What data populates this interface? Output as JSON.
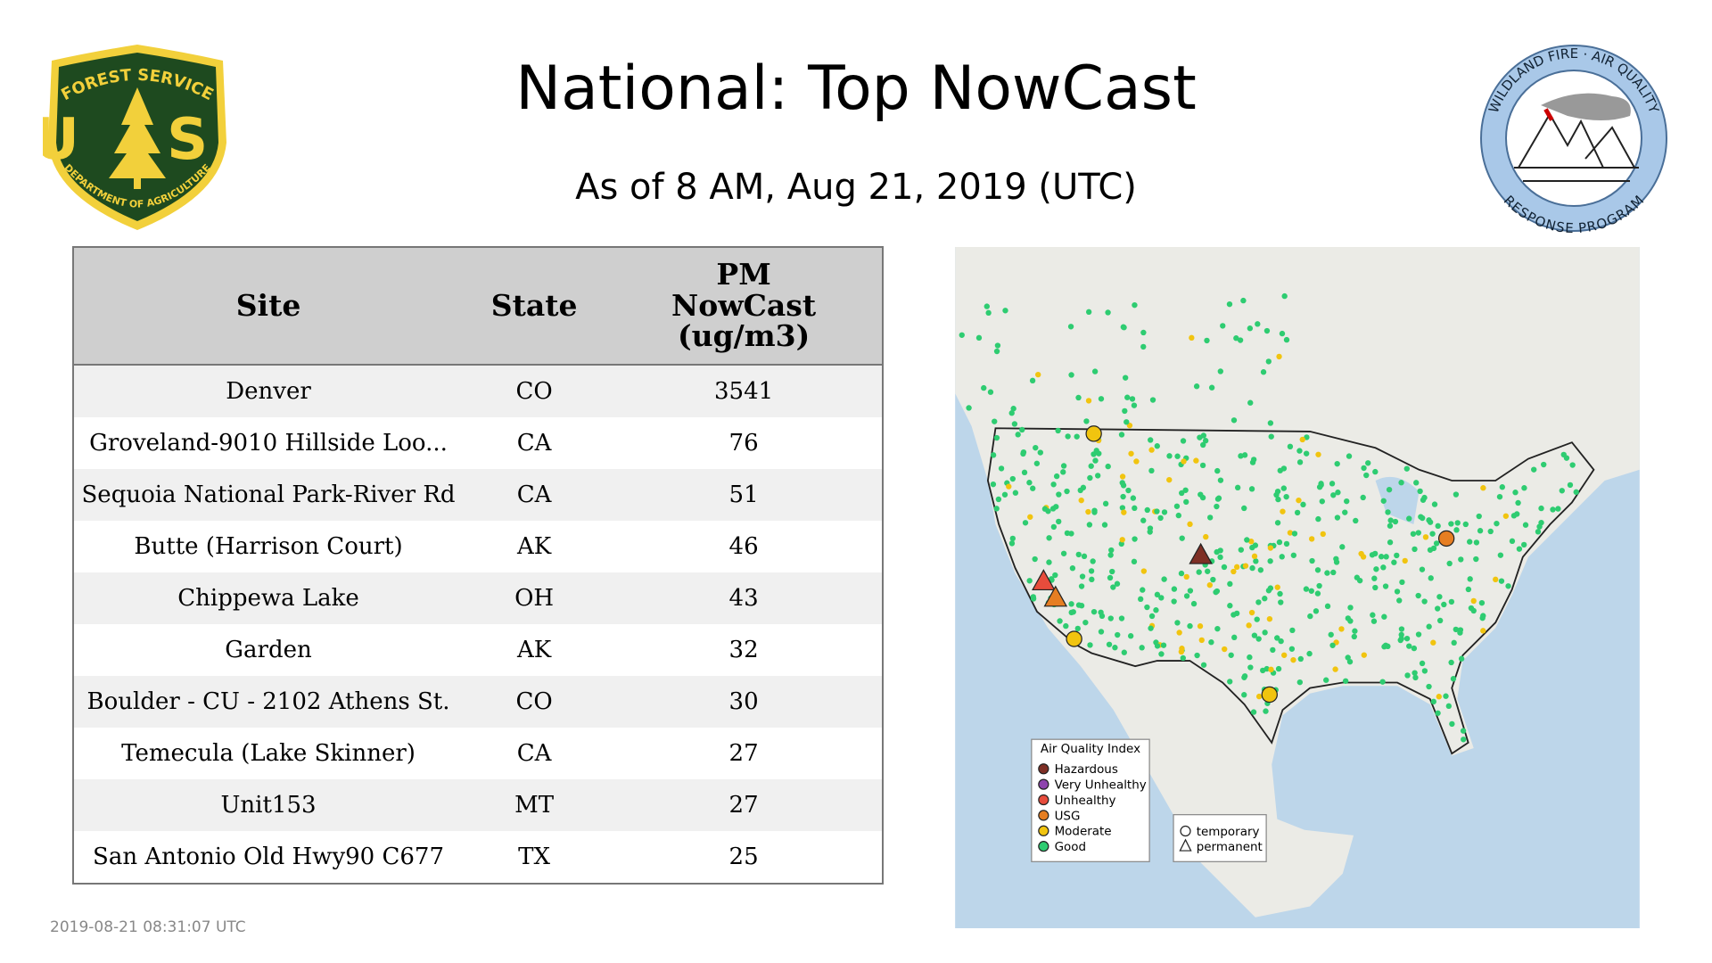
{
  "header": {
    "title": "National: Top NowCast",
    "subtitle": "As of  8 AM, Aug 21, 2019 (UTC)"
  },
  "logos": {
    "left": {
      "top": "FOREST SERVICE",
      "letters": "U S",
      "bottom": "DEPARTMENT OF AGRICULTURE"
    },
    "right": {
      "top": "WILDLAND FIRE · AIR QUALITY",
      "bottom": "RESPONSE PROGRAM"
    }
  },
  "table": {
    "headers": [
      "Site",
      "State",
      "PM NowCast (ug/m3)"
    ],
    "rows": [
      [
        "Denver",
        "CO",
        3541
      ],
      [
        "Groveland-9010 Hillside Loo...",
        "CA",
        76
      ],
      [
        "Sequoia National Park-River Rd",
        "CA",
        51
      ],
      [
        "Butte (Harrison Court)",
        "AK",
        46
      ],
      [
        "Chippewa Lake",
        "OH",
        43
      ],
      [
        "Garden",
        "AK",
        32
      ],
      [
        "Boulder - CU - 2102 Athens St.",
        "CO",
        30
      ],
      [
        "Temecula (Lake Skinner)",
        "CA",
        27
      ],
      [
        "Unit153",
        "MT",
        27
      ],
      [
        "San Antonio Old Hwy90 C677",
        "TX",
        25
      ]
    ]
  },
  "map": {
    "legend": {
      "title": "Air Quality Index",
      "items": [
        {
          "label": "Hazardous",
          "color": "#7e2f25"
        },
        {
          "label": "Very Unhealthy",
          "color": "#8e44ad"
        },
        {
          "label": "Unhealthy",
          "color": "#e74c3c"
        },
        {
          "label": "USG",
          "color": "#e67e22"
        },
        {
          "label": "Moderate",
          "color": "#f1c40f"
        },
        {
          "label": "Good",
          "color": "#2ecc71"
        }
      ]
    },
    "shapes": [
      "temporary",
      "permanent"
    ]
  },
  "footer": {
    "timestamp": "2019-08-21 08:31:07 UTC"
  }
}
